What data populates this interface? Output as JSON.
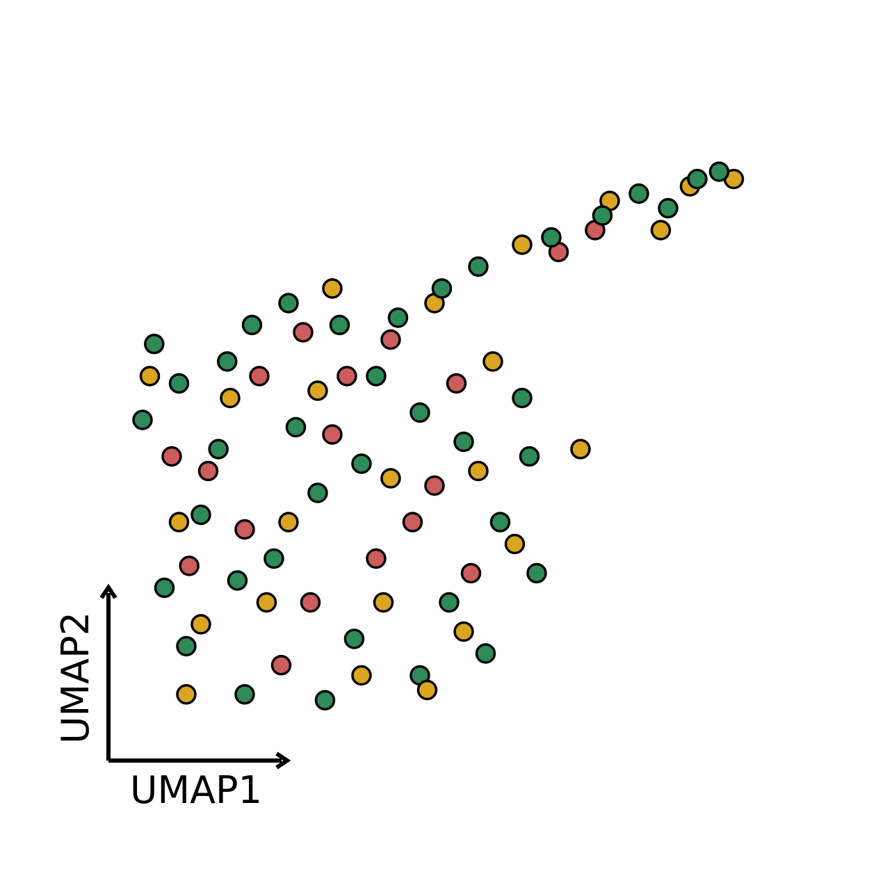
{
  "chart_data": {
    "type": "scatter",
    "title": "",
    "xlabel": "UMAP1",
    "ylabel": "UMAP2",
    "grid": false,
    "legend": "none",
    "xlim": [
      -0.2,
      4.8
    ],
    "ylim": [
      -0.3,
      4.7
    ],
    "point_edge_color": "#000000",
    "series": [
      {
        "name": "green",
        "color": "#2e8b57",
        "points": [
          [
            0.55,
            2.55
          ],
          [
            0.38,
            2.82
          ],
          [
            0.82,
            2.1
          ],
          [
            1.2,
            1.35
          ],
          [
            1.75,
            0.8
          ],
          [
            2.2,
            0.55
          ],
          [
            0.6,
            0.75
          ],
          [
            1.05,
            2.95
          ],
          [
            1.9,
            2.6
          ],
          [
            2.5,
            2.15
          ],
          [
            2.4,
            1.05
          ],
          [
            1.5,
            1.8
          ],
          [
            0.95,
            1.2
          ],
          [
            2.05,
            3.0
          ],
          [
            2.6,
            3.35
          ],
          [
            3.1,
            3.55
          ],
          [
            3.7,
            3.85
          ],
          [
            4.1,
            3.95
          ],
          [
            1.35,
            2.25
          ],
          [
            0.7,
            1.65
          ],
          [
            2.75,
            1.6
          ],
          [
            1.65,
            2.95
          ],
          [
            2.9,
            2.45
          ],
          [
            0.45,
            1.15
          ],
          [
            1.0,
            0.42
          ],
          [
            1.55,
            0.38
          ],
          [
            2.65,
            0.7
          ],
          [
            3.0,
            1.25
          ],
          [
            2.2,
            2.35
          ],
          [
            1.3,
            3.1
          ],
          [
            0.3,
            2.3
          ],
          [
            2.95,
            2.05
          ],
          [
            3.45,
            3.7
          ],
          [
            3.9,
            3.75
          ],
          [
            4.25,
            4.0
          ],
          [
            1.8,
            2.0
          ],
          [
            0.88,
            2.7
          ],
          [
            2.35,
            3.2
          ]
        ]
      },
      {
        "name": "red",
        "color": "#cd5c5c",
        "points": [
          [
            1.1,
            2.6
          ],
          [
            1.6,
            2.2
          ],
          [
            0.75,
            1.95
          ],
          [
            2.15,
            1.6
          ],
          [
            1.45,
            1.05
          ],
          [
            2.45,
            2.55
          ],
          [
            1.9,
            1.35
          ],
          [
            0.62,
            1.3
          ],
          [
            1.25,
            0.62
          ],
          [
            2.0,
            2.85
          ],
          [
            3.15,
            3.45
          ],
          [
            2.55,
            1.25
          ],
          [
            0.5,
            2.05
          ],
          [
            1.7,
            2.6
          ],
          [
            2.3,
            1.85
          ],
          [
            1.0,
            1.55
          ],
          [
            3.4,
            3.6
          ],
          [
            1.4,
            2.9
          ]
        ]
      },
      {
        "name": "gold",
        "color": "#daa520",
        "points": [
          [
            0.9,
            2.45
          ],
          [
            1.5,
            2.5
          ],
          [
            2.0,
            1.9
          ],
          [
            1.3,
            1.6
          ],
          [
            0.7,
            0.9
          ],
          [
            1.8,
            0.55
          ],
          [
            2.6,
            1.95
          ],
          [
            2.85,
            1.45
          ],
          [
            0.35,
            2.6
          ],
          [
            1.15,
            1.05
          ],
          [
            2.3,
            3.1
          ],
          [
            2.9,
            3.5
          ],
          [
            3.5,
            3.8
          ],
          [
            4.05,
            3.9
          ],
          [
            4.35,
            3.95
          ],
          [
            2.25,
            0.45
          ],
          [
            3.3,
            2.1
          ],
          [
            1.6,
            3.2
          ],
          [
            0.55,
            1.6
          ],
          [
            2.7,
            2.7
          ],
          [
            1.95,
            1.05
          ],
          [
            0.6,
            0.42
          ],
          [
            2.5,
            0.85
          ],
          [
            3.85,
            3.6
          ]
        ]
      }
    ]
  }
}
